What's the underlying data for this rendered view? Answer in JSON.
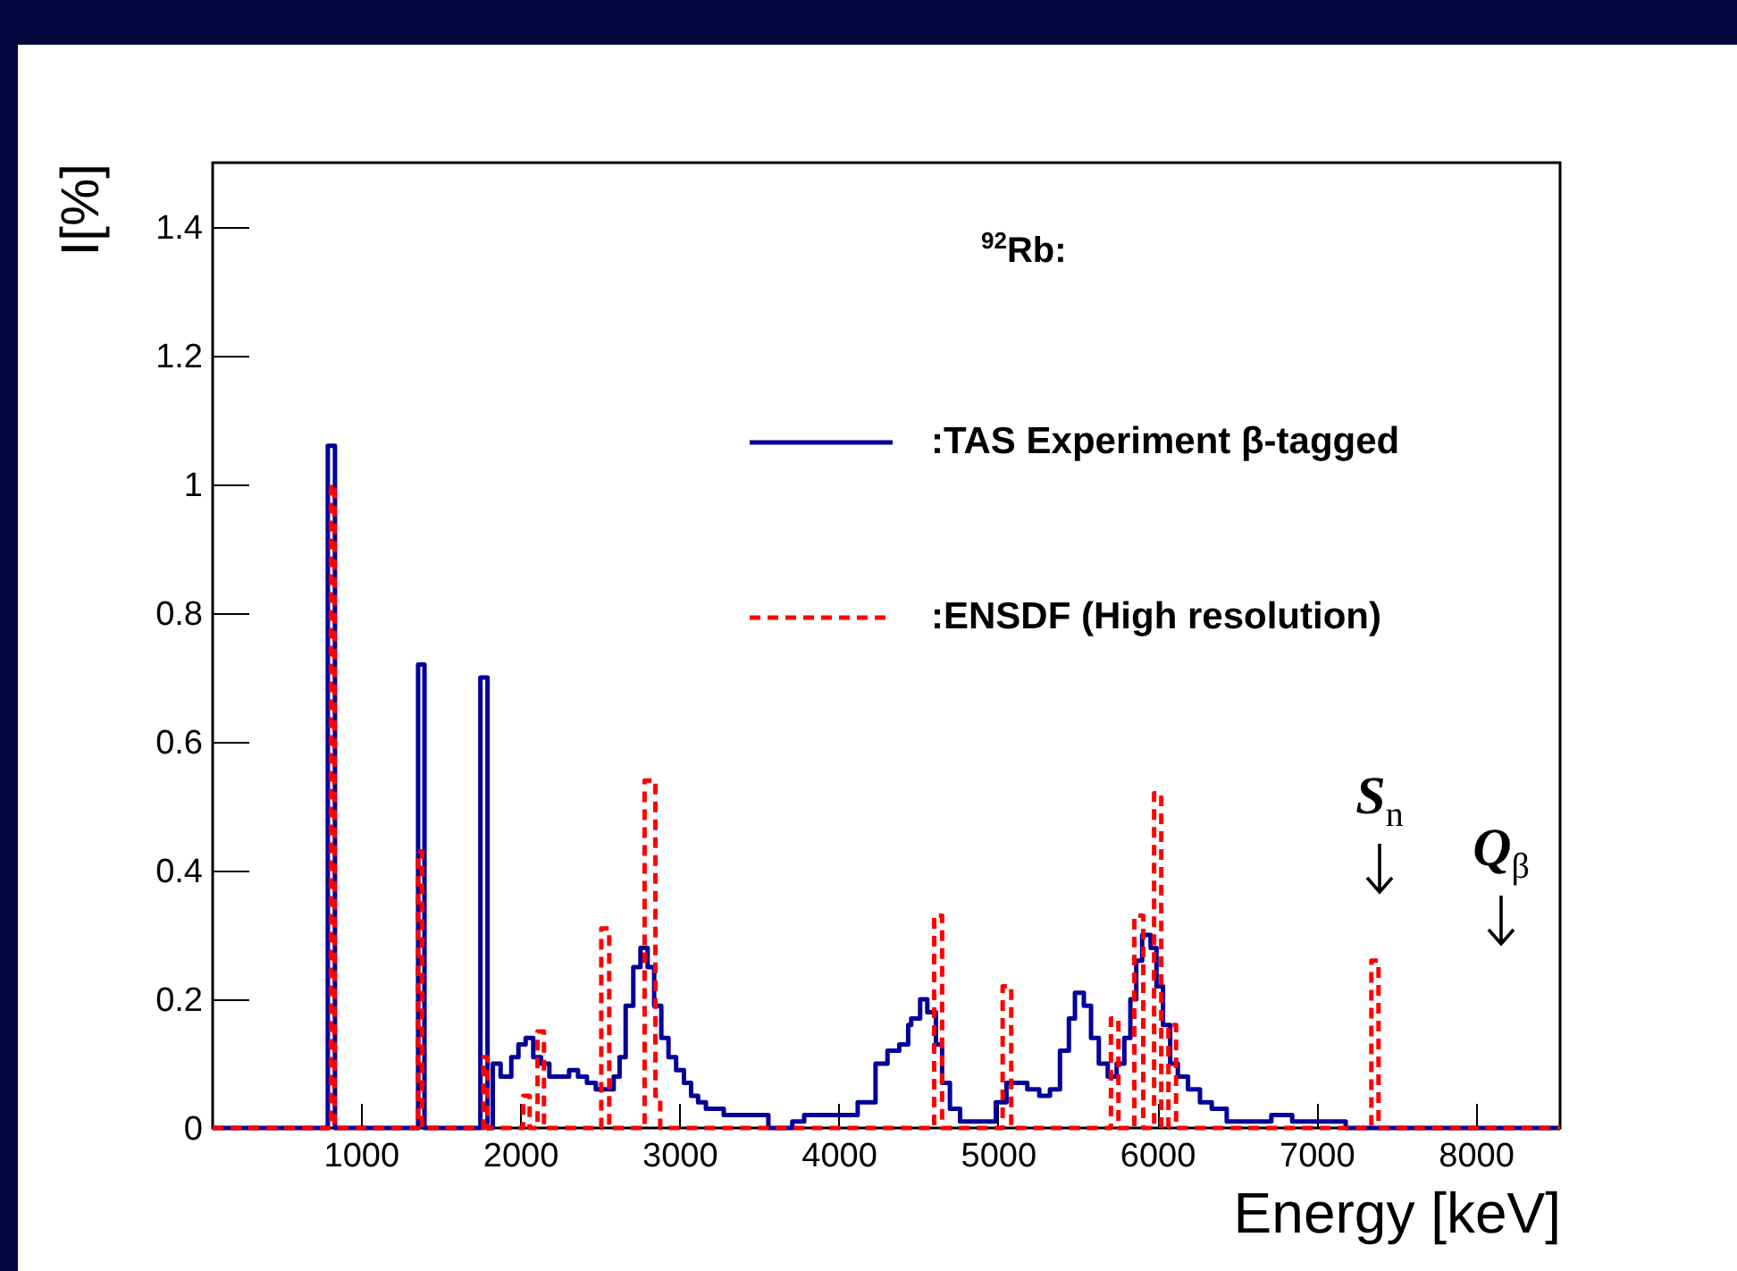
{
  "chart_data": {
    "type": "step",
    "title": "$^{92}$Rb:",
    "xlabel": "Energy [keV]",
    "ylabel": "I[%]",
    "xlim": [
      70,
      8530
    ],
    "ylim": [
      0,
      1.5
    ],
    "xticks": [
      1000,
      2000,
      3000,
      4000,
      5000,
      6000,
      7000,
      8000
    ],
    "yticks": [
      0,
      0.2,
      0.4,
      0.6,
      0.8,
      1,
      1.2,
      1.4
    ],
    "grid": false,
    "legend": "top right",
    "marker": "none",
    "annotations": [
      "S$_{n}$",
      "Q$_{β}$"
    ],
    "series": [
      {
        "name": ":TAS Experiment β-tagged",
        "color": "#000099",
        "line_style": "solid",
        "x": [
          70,
          793,
          838,
          1360,
          1400,
          1751,
          1796,
          1829,
          1878,
          1945,
          1990,
          2035,
          2083,
          2132,
          2184,
          2252,
          2308,
          2364,
          2420,
          2476,
          2532,
          2588,
          2625,
          2663,
          2711,
          2756,
          2801,
          2842,
          2887,
          2932,
          2980,
          3029,
          3074,
          3118,
          3167,
          3223,
          3279,
          3335,
          3559,
          3709,
          3784,
          3858,
          4008,
          4120,
          4232,
          4307,
          4381,
          4437,
          4456,
          4512,
          4557,
          4611,
          4650,
          4699,
          4763,
          4849,
          4923,
          4987,
          5054,
          5121,
          5185,
          5260,
          5327,
          5390,
          5446,
          5484,
          5540,
          5585,
          5634,
          5690,
          5746,
          5794,
          5832,
          5869,
          5906,
          5959,
          5996,
          6037,
          6082,
          6130,
          6194,
          6269,
          6343,
          6437,
          6586,
          6717,
          6848,
          7035,
          7128,
          7184,
          8530
        ],
        "values": [
          0,
          1.06,
          0,
          0.72,
          0,
          0.7,
          0,
          0.1,
          0.08,
          0.11,
          0.13,
          0.14,
          0.11,
          0.1,
          0.08,
          0.08,
          0.09,
          0.08,
          0.07,
          0.06,
          0.06,
          0.08,
          0.11,
          0.19,
          0.25,
          0.28,
          0.25,
          0.19,
          0.14,
          0.11,
          0.09,
          0.07,
          0.05,
          0.04,
          0.03,
          0.03,
          0.02,
          0.02,
          0.0,
          0.01,
          0.02,
          0.02,
          0.02,
          0.04,
          0.1,
          0.12,
          0.13,
          0.16,
          0.17,
          0.2,
          0.18,
          0.13,
          0.07,
          0.03,
          0.01,
          0.01,
          0.01,
          0.04,
          0.07,
          0.07,
          0.06,
          0.05,
          0.06,
          0.12,
          0.17,
          0.21,
          0.19,
          0.14,
          0.1,
          0.08,
          0.1,
          0.14,
          0.2,
          0.26,
          0.3,
          0.28,
          0.22,
          0.16,
          0.1,
          0.08,
          0.06,
          0.04,
          0.03,
          0.01,
          0.01,
          0.02,
          0.01,
          0.01,
          0.01,
          0,
          0
        ]
      },
      {
        "name": ":ENSDF (High resolution)",
        "color": "#ff0000",
        "line_style": "dashed",
        "x": [
          70,
          813,
          835,
          1360,
          1385,
          1770,
          1796,
          2020,
          2060,
          2110,
          2150,
          2510,
          2560,
          2782,
          2850,
          2880,
          4600,
          4650,
          5030,
          5084,
          5710,
          5757,
          5857,
          5913,
          5981,
          6026,
          6071,
          6119,
          7345,
          7390,
          8530
        ],
        "values": [
          0,
          1.0,
          0,
          0.43,
          0,
          0.11,
          0,
          0.05,
          0,
          0.15,
          0,
          0.31,
          0,
          0.54,
          0.05,
          0,
          0.33,
          0,
          0.22,
          0,
          0.17,
          0,
          0.33,
          0,
          0.52,
          0,
          0.16,
          0,
          0.26,
          0,
          0
        ]
      }
    ]
  }
}
